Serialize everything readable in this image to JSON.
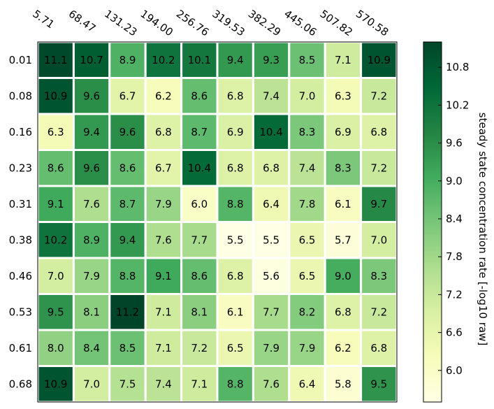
{
  "chart_data": {
    "type": "heatmap",
    "title": "",
    "x": [
      "5.71",
      "68.47",
      "131.23",
      "194.00",
      "256.76",
      "319.53",
      "382.29",
      "445.06",
      "507.82",
      "570.58"
    ],
    "y": [
      "0.01",
      "0.08",
      "0.16",
      "0.23",
      "0.31",
      "0.38",
      "0.46",
      "0.53",
      "0.61",
      "0.68"
    ],
    "values": [
      [
        11.1,
        10.7,
        8.9,
        10.2,
        10.1,
        9.4,
        9.3,
        8.5,
        7.1,
        10.9
      ],
      [
        10.9,
        9.6,
        6.7,
        6.2,
        8.6,
        6.8,
        7.4,
        7.0,
        6.3,
        7.2
      ],
      [
        6.3,
        9.4,
        9.6,
        6.8,
        8.7,
        6.9,
        10.4,
        8.3,
        6.9,
        6.8
      ],
      [
        8.6,
        9.6,
        8.6,
        6.7,
        10.4,
        6.8,
        6.8,
        7.4,
        8.3,
        7.2
      ],
      [
        9.1,
        7.6,
        8.7,
        7.9,
        6.0,
        8.8,
        6.4,
        7.8,
        6.1,
        9.7
      ],
      [
        10.2,
        8.9,
        9.4,
        7.6,
        7.7,
        5.5,
        5.5,
        6.5,
        5.7,
        7.0
      ],
      [
        7.0,
        7.9,
        8.8,
        9.1,
        8.6,
        6.8,
        5.6,
        6.5,
        9.0,
        8.3
      ],
      [
        9.5,
        8.1,
        11.2,
        7.1,
        8.1,
        6.1,
        7.7,
        8.2,
        6.8,
        7.2
      ],
      [
        8.0,
        8.4,
        8.5,
        7.1,
        7.2,
        6.5,
        7.9,
        7.9,
        6.2,
        6.8
      ],
      [
        10.9,
        7.0,
        7.5,
        7.4,
        7.1,
        8.8,
        7.6,
        6.4,
        5.8,
        9.5
      ]
    ],
    "colorbar": {
      "label": "steady state concentration rate [-log10 raw]",
      "ticks": [
        "6.0",
        "6.6",
        "7.2",
        "7.8",
        "8.4",
        "9.0",
        "9.6",
        "10.2",
        "10.8"
      ],
      "range": [
        5.5,
        11.2
      ],
      "colormap": "YlGn"
    },
    "grid": true
  },
  "colors": {
    "colormap": [
      "#ffffe5",
      "#f7fcb9",
      "#d9f0a3",
      "#addd8e",
      "#78c679",
      "#41ab5d",
      "#238443",
      "#006837",
      "#004529"
    ],
    "grid_line": "#ffffff",
    "frame": "#000000"
  }
}
